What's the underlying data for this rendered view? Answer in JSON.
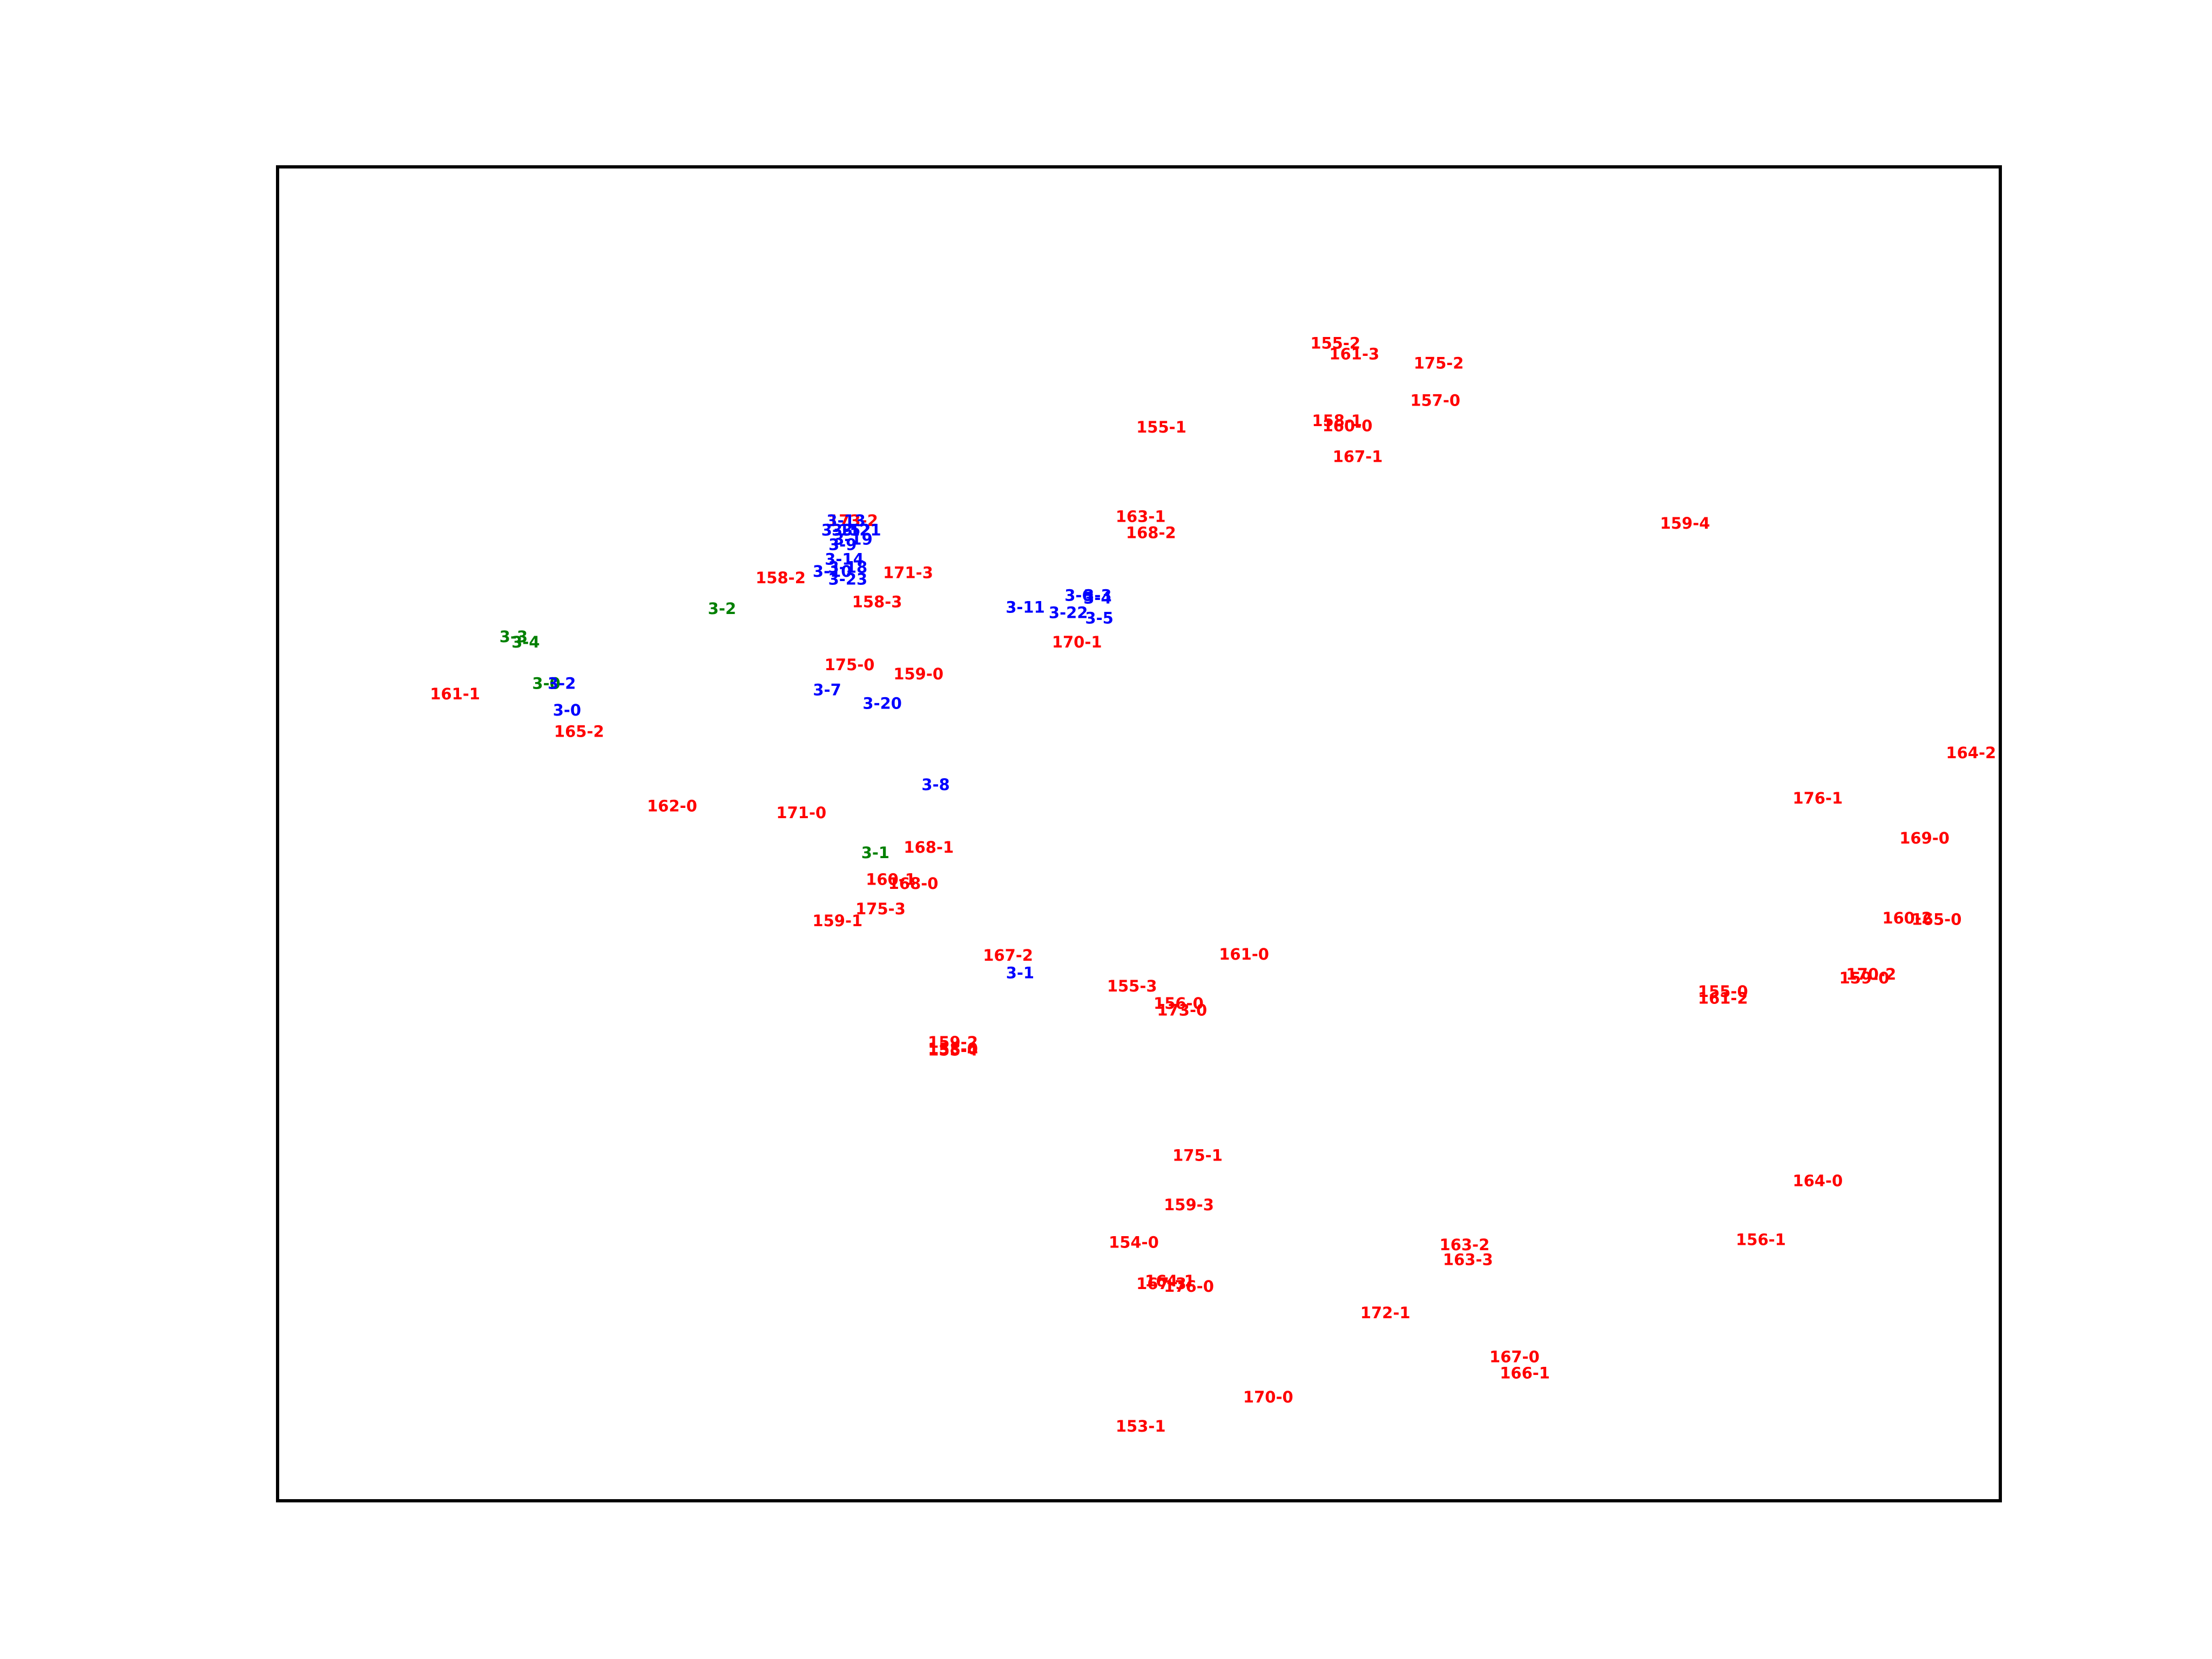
{
  "chart_data": {
    "type": "scatter",
    "title": "",
    "xlabel": "",
    "ylabel": "",
    "axes_visible": false,
    "grid": false,
    "legend": "none",
    "xlim": [
      0,
      1000
    ],
    "ylim": [
      0,
      1000
    ],
    "colors": {
      "red": "#ff0000",
      "blue": "#0000ff",
      "green": "#008000"
    },
    "points": [
      {
        "label": "155-2",
        "x": 614,
        "y": 867,
        "color": "red"
      },
      {
        "label": "161-3",
        "x": 625,
        "y": 859,
        "color": "red"
      },
      {
        "label": "175-2",
        "x": 674,
        "y": 852,
        "color": "red"
      },
      {
        "label": "157-0",
        "x": 672,
        "y": 824,
        "color": "red"
      },
      {
        "label": "158-1",
        "x": 615,
        "y": 809,
        "color": "red"
      },
      {
        "label": "160-0",
        "x": 621,
        "y": 805,
        "color": "red"
      },
      {
        "label": "155-1",
        "x": 513,
        "y": 804,
        "color": "red"
      },
      {
        "label": "167-1",
        "x": 627,
        "y": 782,
        "color": "red"
      },
      {
        "label": "163-1",
        "x": 501,
        "y": 737,
        "color": "red"
      },
      {
        "label": "168-2",
        "x": 507,
        "y": 725,
        "color": "red"
      },
      {
        "label": "159-4",
        "x": 817,
        "y": 732,
        "color": "red"
      },
      {
        "label": "173-2",
        "x": 334,
        "y": 734,
        "color": "red"
      },
      {
        "label": "3-13",
        "x": 330,
        "y": 734,
        "color": "blue"
      },
      {
        "label": "3-15",
        "x": 327,
        "y": 727,
        "color": "blue"
      },
      {
        "label": "3-12",
        "x": 333,
        "y": 727,
        "color": "blue"
      },
      {
        "label": "3-21",
        "x": 339,
        "y": 727,
        "color": "blue"
      },
      {
        "label": "3-19",
        "x": 334,
        "y": 720,
        "color": "blue"
      },
      {
        "label": "3-9",
        "x": 328,
        "y": 716,
        "color": "blue"
      },
      {
        "label": "3-14",
        "x": 329,
        "y": 705,
        "color": "blue"
      },
      {
        "label": "3-18",
        "x": 331,
        "y": 699,
        "color": "blue"
      },
      {
        "label": "3-10",
        "x": 322,
        "y": 696,
        "color": "blue"
      },
      {
        "label": "3-23",
        "x": 331,
        "y": 690,
        "color": "blue"
      },
      {
        "label": "171-3",
        "x": 366,
        "y": 695,
        "color": "red"
      },
      {
        "label": "158-2",
        "x": 292,
        "y": 691,
        "color": "red"
      },
      {
        "label": "158-3",
        "x": 348,
        "y": 673,
        "color": "red"
      },
      {
        "label": "3-2",
        "x": 258,
        "y": 668,
        "color": "green"
      },
      {
        "label": "3-11",
        "x": 434,
        "y": 669,
        "color": "blue"
      },
      {
        "label": "3-6",
        "x": 465,
        "y": 678,
        "color": "blue"
      },
      {
        "label": "3-3",
        "x": 476,
        "y": 678,
        "color": "blue"
      },
      {
        "label": "3-4",
        "x": 476,
        "y": 676,
        "color": "blue"
      },
      {
        "label": "3-22",
        "x": 459,
        "y": 665,
        "color": "blue"
      },
      {
        "label": "3-5",
        "x": 477,
        "y": 661,
        "color": "blue"
      },
      {
        "label": "170-1",
        "x": 464,
        "y": 643,
        "color": "red"
      },
      {
        "label": "3-3",
        "x": 137,
        "y": 647,
        "color": "green"
      },
      {
        "label": "3-4",
        "x": 144,
        "y": 643,
        "color": "green"
      },
      {
        "label": "175-0",
        "x": 332,
        "y": 626,
        "color": "red"
      },
      {
        "label": "159-0",
        "x": 372,
        "y": 619,
        "color": "red"
      },
      {
        "label": "3-0",
        "x": 156,
        "y": 612,
        "color": "green"
      },
      {
        "label": "3-2",
        "x": 165,
        "y": 612,
        "color": "blue"
      },
      {
        "label": "3-7",
        "x": 319,
        "y": 607,
        "color": "blue"
      },
      {
        "label": "161-1",
        "x": 103,
        "y": 604,
        "color": "red"
      },
      {
        "label": "3-0",
        "x": 168,
        "y": 592,
        "color": "blue"
      },
      {
        "label": "3-20",
        "x": 351,
        "y": 597,
        "color": "blue"
      },
      {
        "label": "165-2",
        "x": 175,
        "y": 576,
        "color": "red"
      },
      {
        "label": "164-2",
        "x": 983,
        "y": 560,
        "color": "red"
      },
      {
        "label": "3-8",
        "x": 382,
        "y": 536,
        "color": "blue"
      },
      {
        "label": "176-1",
        "x": 894,
        "y": 526,
        "color": "red"
      },
      {
        "label": "162-0",
        "x": 229,
        "y": 520,
        "color": "red"
      },
      {
        "label": "171-0",
        "x": 304,
        "y": 515,
        "color": "red"
      },
      {
        "label": "169-0",
        "x": 956,
        "y": 496,
        "color": "red"
      },
      {
        "label": "3-1",
        "x": 347,
        "y": 485,
        "color": "green"
      },
      {
        "label": "168-1",
        "x": 378,
        "y": 489,
        "color": "red"
      },
      {
        "label": "160-1",
        "x": 356,
        "y": 465,
        "color": "red"
      },
      {
        "label": "168-0",
        "x": 369,
        "y": 462,
        "color": "red"
      },
      {
        "label": "175-3",
        "x": 350,
        "y": 443,
        "color": "red"
      },
      {
        "label": "159-1",
        "x": 325,
        "y": 434,
        "color": "red"
      },
      {
        "label": "160-2",
        "x": 946,
        "y": 436,
        "color": "red"
      },
      {
        "label": "165-0",
        "x": 963,
        "y": 435,
        "color": "red"
      },
      {
        "label": "167-2",
        "x": 424,
        "y": 408,
        "color": "red"
      },
      {
        "label": "161-0",
        "x": 561,
        "y": 409,
        "color": "red"
      },
      {
        "label": "3-1",
        "x": 431,
        "y": 395,
        "color": "blue"
      },
      {
        "label": "155-3",
        "x": 496,
        "y": 385,
        "color": "red"
      },
      {
        "label": "170-2",
        "x": 925,
        "y": 394,
        "color": "red"
      },
      {
        "label": "159-0",
        "x": 921,
        "y": 391,
        "color": "red"
      },
      {
        "label": "155-0",
        "x": 839,
        "y": 381,
        "color": "red"
      },
      {
        "label": "161-2",
        "x": 839,
        "y": 376,
        "color": "red"
      },
      {
        "label": "156-0",
        "x": 523,
        "y": 372,
        "color": "red"
      },
      {
        "label": "173-0",
        "x": 525,
        "y": 367,
        "color": "red"
      },
      {
        "label": "159-2",
        "x": 392,
        "y": 343,
        "color": "red"
      },
      {
        "label": "158-0",
        "x": 392,
        "y": 338,
        "color": "red"
      },
      {
        "label": "155-4",
        "x": 392,
        "y": 337,
        "color": "red"
      },
      {
        "label": "175-1",
        "x": 534,
        "y": 258,
        "color": "red"
      },
      {
        "label": "164-0",
        "x": 894,
        "y": 239,
        "color": "red"
      },
      {
        "label": "159-3",
        "x": 529,
        "y": 221,
        "color": "red"
      },
      {
        "label": "154-0",
        "x": 497,
        "y": 193,
        "color": "red"
      },
      {
        "label": "163-2",
        "x": 689,
        "y": 191,
        "color": "red"
      },
      {
        "label": "163-3",
        "x": 691,
        "y": 180,
        "color": "red"
      },
      {
        "label": "156-1",
        "x": 861,
        "y": 195,
        "color": "red"
      },
      {
        "label": "164-1",
        "x": 518,
        "y": 164,
        "color": "red"
      },
      {
        "label": "167-3",
        "x": 513,
        "y": 162,
        "color": "red"
      },
      {
        "label": "176-0",
        "x": 529,
        "y": 160,
        "color": "red"
      },
      {
        "label": "172-1",
        "x": 643,
        "y": 140,
        "color": "red"
      },
      {
        "label": "167-0",
        "x": 718,
        "y": 107,
        "color": "red"
      },
      {
        "label": "166-1",
        "x": 724,
        "y": 95,
        "color": "red"
      },
      {
        "label": "170-0",
        "x": 575,
        "y": 77,
        "color": "red"
      },
      {
        "label": "153-1",
        "x": 501,
        "y": 55,
        "color": "red"
      }
    ]
  }
}
